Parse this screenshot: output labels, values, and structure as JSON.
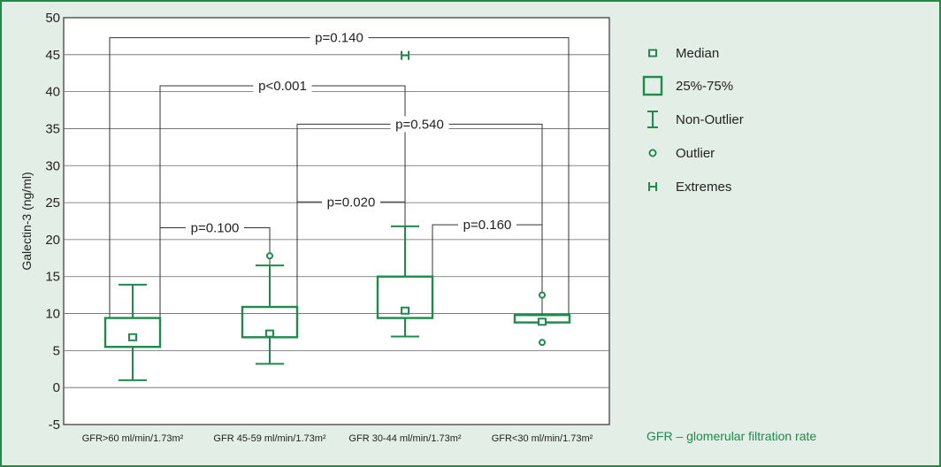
{
  "colors": {
    "accent": "#1f8a4c",
    "figure_background": "#e3eee6",
    "plot_background": "#ffffff",
    "line": "#333333"
  },
  "chart_data": {
    "type": "box",
    "title": "",
    "ylabel": "Galectin-3 (ng/ml)",
    "xlabel": "",
    "ylim": [
      -5,
      50
    ],
    "yticks": [
      "-5",
      "0",
      "5",
      "10",
      "15",
      "20",
      "25",
      "30",
      "35",
      "40",
      "45",
      "50"
    ],
    "grid": "horizontal",
    "categories": [
      "GFR>60 ml/min/1.73m²",
      "GFR 45-59 ml/min/1.73m²",
      "GFR 30-44 ml/min/1.73m²",
      "GFR<30 ml/min/1.73m²"
    ],
    "boxes": [
      {
        "category": "GFR>60 ml/min/1.73m²",
        "median": 6.8,
        "q1": 5.5,
        "q3": 9.4,
        "whisker_low": 1.0,
        "whisker_high": 13.9,
        "outliers": [],
        "extremes": []
      },
      {
        "category": "GFR 45-59 ml/min/1.73m²",
        "median": 7.3,
        "q1": 6.8,
        "q3": 10.9,
        "whisker_low": 3.2,
        "whisker_high": 16.5,
        "outliers": [
          17.8
        ],
        "extremes": []
      },
      {
        "category": "GFR 30-44 ml/min/1.73m²",
        "median": 10.4,
        "q1": 9.4,
        "q3": 15.0,
        "whisker_low": 6.9,
        "whisker_high": 21.8,
        "outliers": [],
        "extremes": [
          44.9
        ]
      },
      {
        "category": "GFR<30 ml/min/1.73m²",
        "median": 8.9,
        "q1": 8.8,
        "q3": 9.8,
        "whisker_low": 8.8,
        "whisker_high": 9.8,
        "outliers": [
          12.5,
          6.1
        ],
        "extremes": []
      }
    ],
    "comparisons": [
      {
        "label": "p=0.140",
        "from": 0,
        "to": 3,
        "y": 47.3
      },
      {
        "label": "p<0.001",
        "from": 0,
        "to": 2,
        "y": 40.8
      },
      {
        "label": "p=0.540",
        "from": 1,
        "to": 3,
        "y": 35.6
      },
      {
        "label": "p=0.020",
        "from": 1,
        "to": 2,
        "y": 25.1
      },
      {
        "label": "p=0.100",
        "from": 0,
        "to": 1,
        "y": 21.6
      },
      {
        "label": "p=0.160",
        "from": 2,
        "to": 3,
        "y": 22.0
      }
    ],
    "legend": {
      "placement": "right",
      "items": [
        {
          "symbol": "median",
          "label": "Median"
        },
        {
          "symbol": "box",
          "label": "25%-75%"
        },
        {
          "symbol": "whisker",
          "label": "Non-Outlier"
        },
        {
          "symbol": "outlier",
          "label": "Outlier"
        },
        {
          "symbol": "extreme",
          "label": "Extremes"
        }
      ]
    },
    "footnote": "GFR – glomerular filtration rate"
  }
}
